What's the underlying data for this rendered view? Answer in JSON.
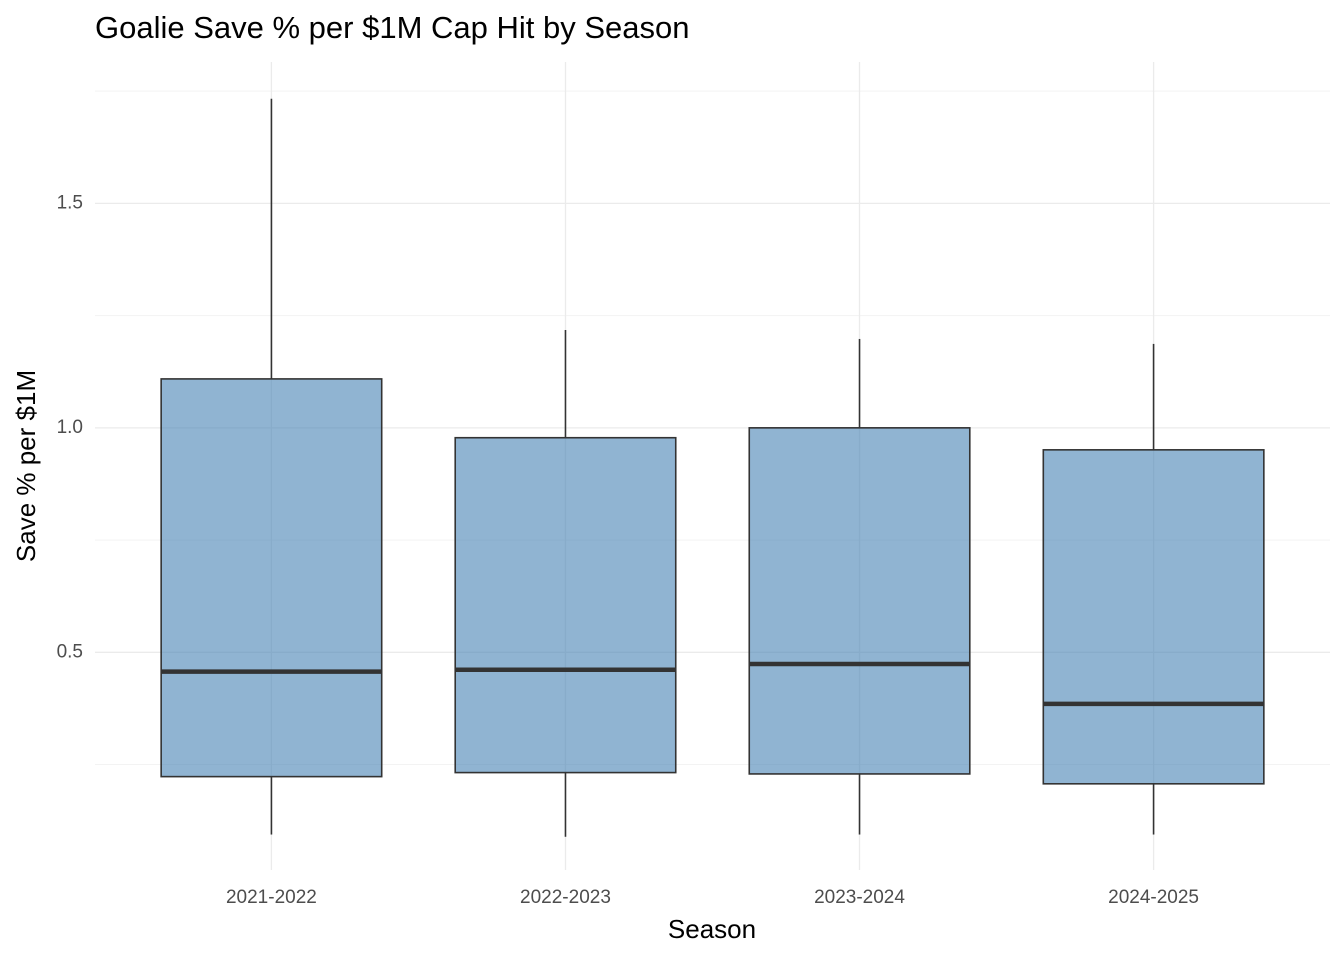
{
  "chart_data": {
    "type": "box",
    "title": "Goalie Save % per $1M Cap Hit by Season",
    "x_label": "Season",
    "y_label": "Save % per $1M",
    "categories": [
      "2021-2022",
      "2022-2023",
      "2023-2024",
      "2024-2025"
    ],
    "boxes": [
      {
        "min": 0.094,
        "q1": 0.223,
        "median": 0.457,
        "q3": 1.109,
        "max": 1.733
      },
      {
        "min": 0.089,
        "q1": 0.232,
        "median": 0.461,
        "q3": 0.978,
        "max": 1.218
      },
      {
        "min": 0.094,
        "q1": 0.229,
        "median": 0.474,
        "q3": 1.0,
        "max": 1.198
      },
      {
        "min": 0.094,
        "q1": 0.207,
        "median": 0.385,
        "q3": 0.951,
        "max": 1.187
      }
    ],
    "color": "#4682b4",
    "ylim": [
      0.015,
      1.815
    ],
    "yticks": [
      {
        "value": 0.5,
        "label": "0.5"
      },
      {
        "value": 1,
        "label": "1.0"
      },
      {
        "value": 1.5,
        "label": "1.5"
      }
    ],
    "minor_yticks": [
      0.25,
      0.75,
      1.25,
      1.75
    ],
    "grid": true
  }
}
